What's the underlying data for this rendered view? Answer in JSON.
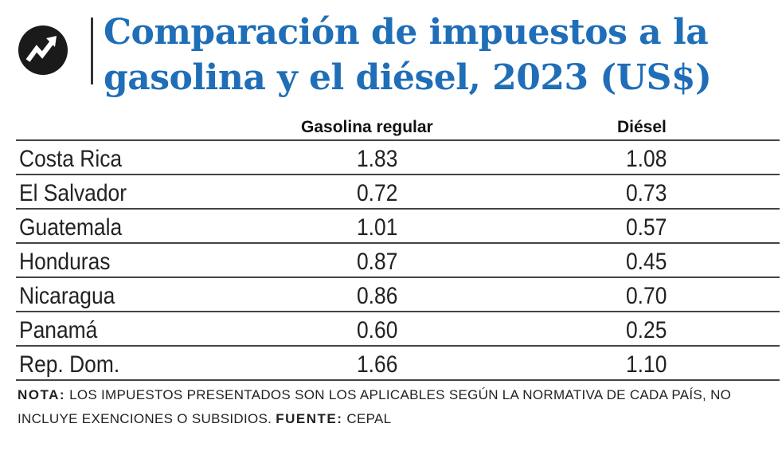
{
  "header": {
    "title": "Comparación de impuestos a la gasolina y el diésel, 2023 (US$)",
    "logo_icon": "trend-arrow-icon"
  },
  "chart_data": {
    "type": "table",
    "title": "Comparación de impuestos a la gasolina y el diésel, 2023 (US$)",
    "columns": [
      "",
      "Gasolina regular",
      "Diésel"
    ],
    "rows": [
      {
        "country": "Costa Rica",
        "gasolina": "1.83",
        "diesel": "1.08"
      },
      {
        "country": "El Salvador",
        "gasolina": "0.72",
        "diesel": "0.73"
      },
      {
        "country": "Guatemala",
        "gasolina": "1.01",
        "diesel": "0.57"
      },
      {
        "country": "Honduras",
        "gasolina": "0.87",
        "diesel": "0.45"
      },
      {
        "country": "Nicaragua",
        "gasolina": "0.86",
        "diesel": "0.70"
      },
      {
        "country": "Panamá",
        "gasolina": "0.60",
        "diesel": "0.25"
      },
      {
        "country": "Rep. Dom.",
        "gasolina": "1.66",
        "diesel": "1.10"
      }
    ]
  },
  "footer": {
    "note_label": "NOTA:",
    "note_text": " LOS IMPUESTOS PRESENTADOS SON LOS APLICABLES SEGÚN LA NORMATIVA DE CADA PAÍS, NO INCLUYE EXENCIONES O SUBSIDIOS. ",
    "source_label": "FUENTE:",
    "source_text": " CEPAL"
  },
  "colors": {
    "title": "#1f6eb7",
    "rule": "#444444",
    "logo_bg": "#1a1a1a"
  }
}
